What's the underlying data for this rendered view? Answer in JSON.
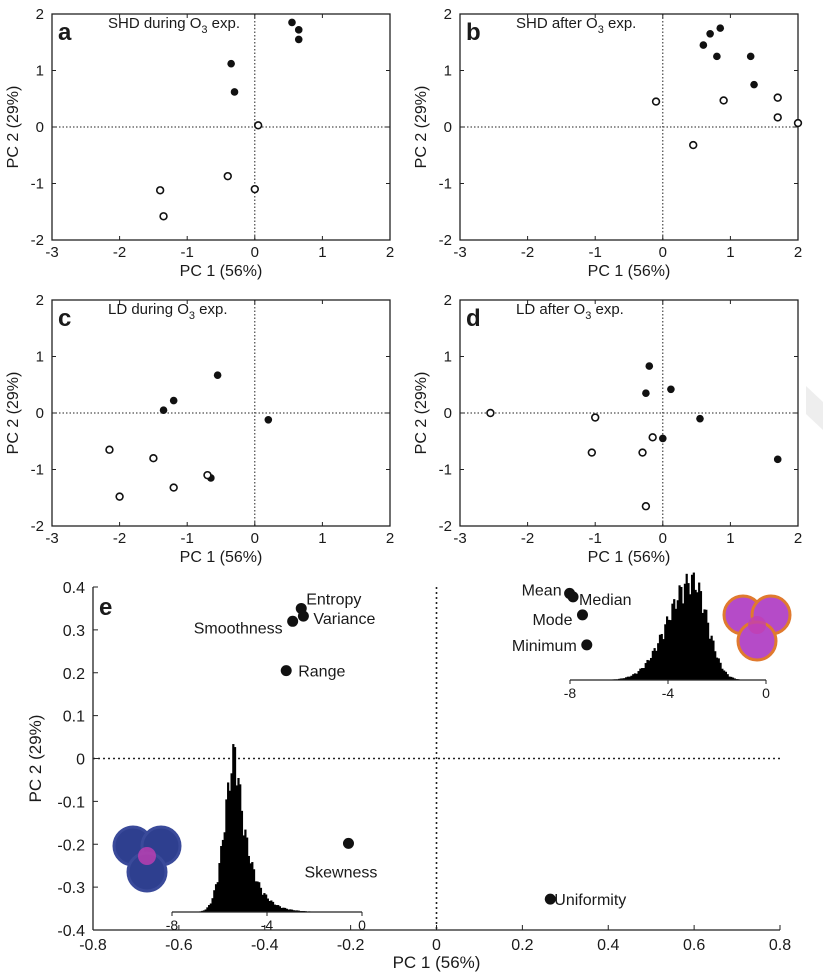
{
  "chart_data": [
    {
      "panel": "a",
      "type": "scatter",
      "title": "SHD during O3 exp.",
      "title_main": "SHD during O",
      "title_sub": "3",
      "title_tail": " exp.",
      "xlabel": "PC 1 (56%)",
      "ylabel": "PC 2 (29%)",
      "xlim": [
        -3,
        2
      ],
      "ylim": [
        -2,
        2
      ],
      "xticks": [
        "-3",
        "-2",
        "-1",
        "0",
        "1",
        "2"
      ],
      "yticks": [
        "-2",
        "-1",
        "0",
        "1",
        "2"
      ],
      "filled": [
        [
          0.55,
          1.85
        ],
        [
          0.65,
          1.72
        ],
        [
          0.65,
          1.55
        ],
        [
          -0.35,
          1.12
        ],
        [
          -0.3,
          0.62
        ]
      ],
      "open": [
        [
          0.05,
          0.03
        ],
        [
          -0.4,
          -0.87
        ],
        [
          0.0,
          -1.1
        ],
        [
          -1.4,
          -1.12
        ],
        [
          -1.35,
          -1.58
        ]
      ]
    },
    {
      "panel": "b",
      "type": "scatter",
      "title": "SHD after O3 exp.",
      "title_main": "SHD after O",
      "title_sub": "3",
      "title_tail": " exp.",
      "xlabel": "PC 1 (56%)",
      "ylabel": "PC 2 (29%)",
      "xlim": [
        -3,
        2
      ],
      "ylim": [
        -2,
        2
      ],
      "xticks": [
        "-3",
        "-2",
        "-1",
        "0",
        "1",
        "2"
      ],
      "yticks": [
        "-2",
        "-1",
        "0",
        "1",
        "2"
      ],
      "filled": [
        [
          0.6,
          1.45
        ],
        [
          0.7,
          1.65
        ],
        [
          0.85,
          1.75
        ],
        [
          0.8,
          1.25
        ],
        [
          1.3,
          1.25
        ],
        [
          1.35,
          0.75
        ]
      ],
      "open": [
        [
          -0.1,
          0.45
        ],
        [
          0.9,
          0.47
        ],
        [
          0.45,
          -0.32
        ],
        [
          1.7,
          0.52
        ],
        [
          1.7,
          0.17
        ],
        [
          2.0,
          0.07
        ]
      ]
    },
    {
      "panel": "c",
      "type": "scatter",
      "title": "LD during O3 exp.",
      "title_main": "LD during O",
      "title_sub": "3",
      "title_tail": " exp.",
      "xlabel": "PC 1 (56%)",
      "ylabel": "PC 2 (29%)",
      "xlim": [
        -3,
        2
      ],
      "ylim": [
        -2,
        2
      ],
      "xticks": [
        "-3",
        "-2",
        "-1",
        "0",
        "1",
        "2"
      ],
      "yticks": [
        "-2",
        "-1",
        "0",
        "1",
        "2"
      ],
      "filled": [
        [
          -0.55,
          0.67
        ],
        [
          -1.2,
          0.22
        ],
        [
          -1.35,
          0.05
        ],
        [
          0.2,
          -0.12
        ],
        [
          -0.65,
          -1.15
        ]
      ],
      "open": [
        [
          -2.15,
          -0.65
        ],
        [
          -1.5,
          -0.8
        ],
        [
          -2.0,
          -1.48
        ],
        [
          -1.2,
          -1.32
        ],
        [
          -0.7,
          -1.1
        ]
      ]
    },
    {
      "panel": "d",
      "type": "scatter",
      "title": "LD after O3 exp.",
      "title_main": "LD after O",
      "title_sub": "3",
      "title_tail": " exp.",
      "xlabel": "PC 1 (56%)",
      "ylabel": "PC 2 (29%)",
      "xlim": [
        -3,
        2
      ],
      "ylim": [
        -2,
        2
      ],
      "xticks": [
        "-3",
        "-2",
        "-1",
        "0",
        "1",
        "2"
      ],
      "yticks": [
        "-2",
        "-1",
        "0",
        "1",
        "2"
      ],
      "filled": [
        [
          -0.2,
          0.83
        ],
        [
          0.12,
          0.42
        ],
        [
          -0.25,
          0.35
        ],
        [
          0.55,
          -0.1
        ],
        [
          0.0,
          -0.45
        ],
        [
          1.7,
          -0.82
        ]
      ],
      "open": [
        [
          -2.55,
          0.0
        ],
        [
          -1.0,
          -0.08
        ],
        [
          -0.15,
          -0.43
        ],
        [
          -1.05,
          -0.7
        ],
        [
          -0.3,
          -0.7
        ],
        [
          -0.25,
          -1.65
        ]
      ]
    },
    {
      "panel": "e",
      "type": "scatter",
      "xlabel": "PC 1 (56%)",
      "ylabel": "PC 2 (29%)",
      "xlim": [
        -0.8,
        0.8
      ],
      "ylim": [
        -0.4,
        0.4
      ],
      "xticks": [
        "-0.8",
        "-0.6",
        "-0.4",
        "-0.2",
        "0",
        "0.2",
        "0.4",
        "0.6",
        "0.8"
      ],
      "yticks": [
        "-0.4",
        "-0.3",
        "-0.2",
        "-0.1",
        "0",
        "0.1",
        "0.2",
        "0.3",
        "0.4"
      ],
      "points": [
        {
          "label": "Entropy",
          "x": -0.315,
          "y": 0.35
        },
        {
          "label": "Variance",
          "x": -0.31,
          "y": 0.332
        },
        {
          "label": "Smoothness",
          "x": -0.335,
          "y": 0.32
        },
        {
          "label": "Range",
          "x": -0.35,
          "y": 0.205
        },
        {
          "label": "Skewness",
          "x": -0.205,
          "y": -0.198
        },
        {
          "label": "Mean",
          "x": 0.31,
          "y": 0.385
        },
        {
          "label": "Median",
          "x": 0.318,
          "y": 0.377
        },
        {
          "label": "Mode",
          "x": 0.34,
          "y": 0.335
        },
        {
          "label": "Minimum",
          "x": 0.35,
          "y": 0.265
        },
        {
          "label": "Uniformity",
          "x": 0.265,
          "y": -0.328
        }
      ],
      "inset_histograms": [
        {
          "position": "upper-right",
          "xticks": [
            "-8",
            "-4",
            "0"
          ],
          "xlim": [
            -8,
            0
          ],
          "peak": -3,
          "color": "#e07a2e"
        },
        {
          "position": "lower-left",
          "xticks": [
            "-8",
            "-4",
            "0"
          ],
          "xlim": [
            -8,
            0
          ],
          "peak": -5.3,
          "color": "#3a4a9a"
        }
      ]
    }
  ]
}
